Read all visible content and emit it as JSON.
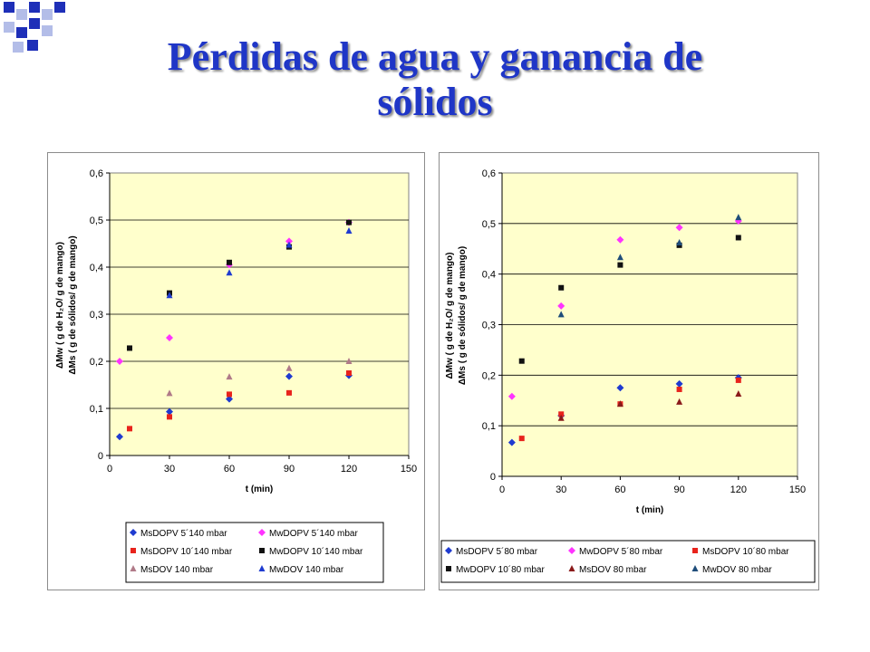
{
  "title_line1": "Pérdidas de agua y ganancia de",
  "title_line2": "sólidos",
  "colors": {
    "title": "#1f36c7",
    "plot_bg": "#ffffcc",
    "decoration": "#1e2fb8"
  },
  "chart_data": [
    {
      "type": "scatter",
      "xlabel": "t (min)",
      "ylabel_lines": [
        "ΔMw ( g de H₂O/ g de mango)",
        "ΔMs ( g de sólidos/ g de mango)"
      ],
      "xlim": [
        0,
        150
      ],
      "ylim": [
        0,
        0.6
      ],
      "xticks": [
        "0",
        "30",
        "60",
        "90",
        "120",
        "150"
      ],
      "yticks": [
        "0",
        "0,1",
        "0,2",
        "0,3",
        "0,4",
        "0,5",
        "0,6"
      ],
      "grid": "horizontal",
      "legend_position": "bottom",
      "legend_columns": 2,
      "series": [
        {
          "name": "MsDOPV 5´140 mbar",
          "marker": "diamond",
          "color": "#1f3bd0",
          "x": [
            5,
            30,
            60,
            90,
            120
          ],
          "y": [
            0.04,
            0.093,
            0.12,
            0.168,
            0.17
          ]
        },
        {
          "name": "MwDOPV 5´140 mbar",
          "marker": "diamond",
          "color": "#ff33ff",
          "x": [
            5,
            30,
            60,
            90,
            120
          ],
          "y": [
            0.2,
            0.25,
            0.405,
            0.455,
            0.495
          ]
        },
        {
          "name": "MsDOPV 10´140 mbar",
          "marker": "square",
          "color": "#e8231c",
          "x": [
            10,
            30,
            60,
            90,
            120
          ],
          "y": [
            0.057,
            0.082,
            0.13,
            0.133,
            0.175
          ]
        },
        {
          "name": "MwDOPV 10´140 mbar",
          "marker": "square",
          "color": "#111111",
          "x": [
            10,
            30,
            60,
            90,
            120
          ],
          "y": [
            0.228,
            0.345,
            0.41,
            0.443,
            0.495
          ]
        },
        {
          "name": "MsDOV 140 mbar",
          "marker": "triangle",
          "color": "#b07a88",
          "x": [
            30,
            60,
            90,
            120
          ],
          "y": [
            0.132,
            0.167,
            0.185,
            0.2
          ]
        },
        {
          "name": "MwDOV 140 mbar",
          "marker": "triangle",
          "color": "#1f3bd0",
          "x": [
            30,
            60,
            90,
            120
          ],
          "y": [
            0.34,
            0.388,
            0.447,
            0.477
          ]
        }
      ]
    },
    {
      "type": "scatter",
      "xlabel": "t (min)",
      "ylabel_lines": [
        "ΔMw ( g de H₂O/ g de mango)",
        "ΔMs ( g de sólidos/ g de mango)"
      ],
      "xlim": [
        0,
        150
      ],
      "ylim": [
        0,
        0.6
      ],
      "xticks": [
        "0",
        "30",
        "60",
        "90",
        "120",
        "150"
      ],
      "yticks": [
        "0",
        "0,1",
        "0,2",
        "0,3",
        "0,4",
        "0,5",
        "0,6"
      ],
      "grid": "horizontal",
      "legend_position": "bottom",
      "legend_columns": 3,
      "series": [
        {
          "name": "MsDOPV 5´80 mbar",
          "marker": "diamond",
          "color": "#1f3bd0",
          "x": [
            5,
            30,
            60,
            90,
            120
          ],
          "y": [
            0.067,
            0.12,
            0.175,
            0.183,
            0.195
          ]
        },
        {
          "name": "MwDOPV 5´80 mbar",
          "marker": "diamond",
          "color": "#ff33ff",
          "x": [
            5,
            30,
            60,
            90,
            120
          ],
          "y": [
            0.158,
            0.337,
            0.468,
            0.492,
            0.505
          ]
        },
        {
          "name": "MsDOPV 10´80 mbar",
          "marker": "square",
          "color": "#e8231c",
          "x": [
            10,
            30,
            60,
            90,
            120
          ],
          "y": [
            0.075,
            0.123,
            0.143,
            0.172,
            0.19
          ]
        },
        {
          "name": "MwDOPV 10´80 mbar",
          "marker": "square",
          "color": "#111111",
          "x": [
            10,
            30,
            60,
            90,
            120
          ],
          "y": [
            0.228,
            0.373,
            0.418,
            0.457,
            0.472
          ]
        },
        {
          "name": "MsDOV 80 mbar",
          "marker": "triangle",
          "color": "#8a1a1a",
          "x": [
            30,
            60,
            90,
            120
          ],
          "y": [
            0.115,
            0.143,
            0.147,
            0.163
          ]
        },
        {
          "name": "MwDOV 80 mbar",
          "marker": "triangle",
          "color": "#1f4d7a",
          "x": [
            30,
            60,
            90,
            120
          ],
          "y": [
            0.32,
            0.433,
            0.462,
            0.512
          ]
        }
      ]
    }
  ]
}
